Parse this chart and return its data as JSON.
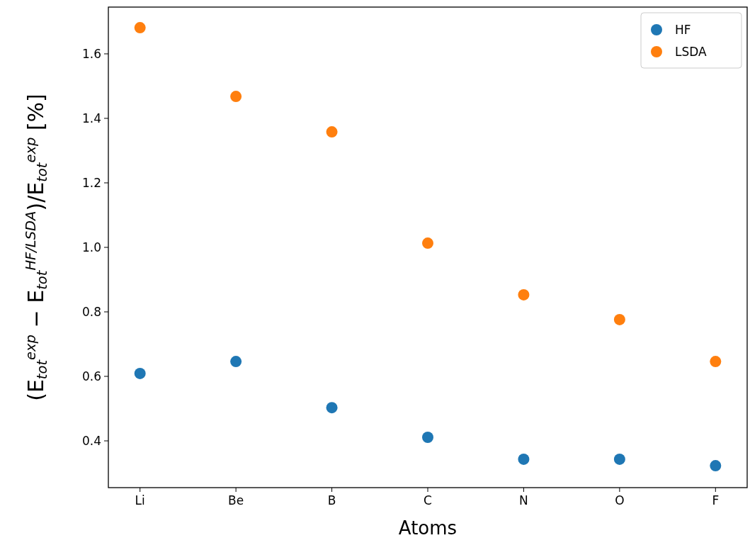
{
  "chart_data": {
    "type": "scatter",
    "xlabel": "Atoms",
    "ylabel": "(E$_{tot}$$^{exp}$ − E$_{tot}$$^{HF/LSDA}$)/E$_{tot}$$^{exp}$ [%]",
    "categories": [
      "Li",
      "Be",
      "B",
      "C",
      "N",
      "O",
      "F"
    ],
    "series": [
      {
        "name": "HF",
        "color": "#1f77b4",
        "values": [
          0.609,
          0.646,
          0.503,
          0.411,
          0.343,
          0.343,
          0.323
        ]
      },
      {
        "name": "LSDA",
        "color": "#ff7f0e",
        "values": [
          1.681,
          1.468,
          1.358,
          1.013,
          0.853,
          0.776,
          0.646
        ]
      }
    ],
    "ylim": [
      0.255,
      1.745
    ],
    "yticks": [
      {
        "value": 0.4,
        "label": "0.4"
      },
      {
        "value": 0.6,
        "label": "0.6"
      },
      {
        "value": 0.8,
        "label": "0.8"
      },
      {
        "value": 1.0,
        "label": "1.0"
      },
      {
        "value": 1.2,
        "label": "1.2"
      },
      {
        "value": 1.4,
        "label": "1.4"
      },
      {
        "value": 1.6,
        "label": "1.6"
      }
    ],
    "grid": false,
    "legend": "top right",
    "marker": "circle"
  }
}
